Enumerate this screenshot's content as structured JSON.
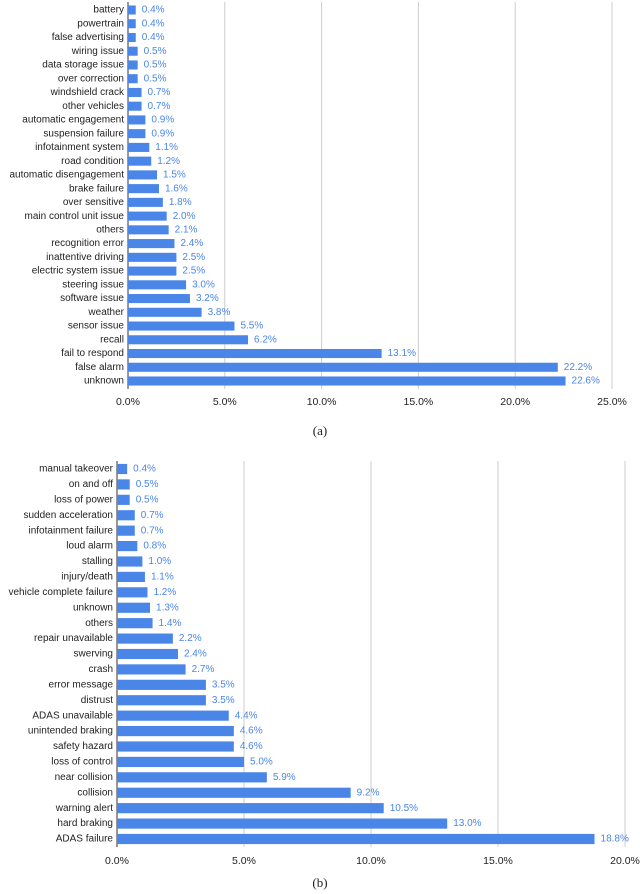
{
  "chart_data": [
    {
      "type": "bar",
      "orientation": "horizontal",
      "caption": "(a)",
      "color": "#4a86e8",
      "grid": true,
      "categories": [
        "battery",
        "powertrain",
        "false advertising",
        "wiring issue",
        "data storage issue",
        "over correction",
        "windshield crack",
        "other vehicles",
        "automatic engagement",
        "suspension failure",
        "infotainment system",
        "road condition",
        "automatic disengagement",
        "brake failure",
        "over sensitive",
        "main control unit issue",
        "others",
        "recognition error",
        "inattentive driving",
        "electric system issue",
        "steering issue",
        "software issue",
        "weather",
        "sensor issue",
        "recall",
        "fail to respond",
        "false alarm",
        "unknown"
      ],
      "values": [
        0.4,
        0.4,
        0.4,
        0.5,
        0.5,
        0.5,
        0.7,
        0.7,
        0.9,
        0.9,
        1.1,
        1.2,
        1.5,
        1.6,
        1.8,
        2.0,
        2.1,
        2.4,
        2.5,
        2.5,
        3.0,
        3.2,
        3.8,
        5.5,
        6.2,
        13.1,
        22.2,
        22.6
      ],
      "value_labels": [
        "0.4%",
        "0.4%",
        "0.4%",
        "0.5%",
        "0.5%",
        "0.5%",
        "0.7%",
        "0.7%",
        "0.9%",
        "0.9%",
        "1.1%",
        "1.2%",
        "1.5%",
        "1.6%",
        "1.8%",
        "2.0%",
        "2.1%",
        "2.4%",
        "2.5%",
        "2.5%",
        "3.0%",
        "3.2%",
        "3.8%",
        "5.5%",
        "6.2%",
        "13.1%",
        "22.2%",
        "22.6%"
      ],
      "xlim": [
        0,
        25
      ],
      "xticks": [
        {
          "value": 0,
          "label": "0.0%"
        },
        {
          "value": 5,
          "label": "5.0%"
        },
        {
          "value": 10,
          "label": "10.0%"
        },
        {
          "value": 15,
          "label": "15.0%"
        },
        {
          "value": 20,
          "label": "20.0%"
        },
        {
          "value": 25,
          "label": "25.0%"
        }
      ]
    },
    {
      "type": "bar",
      "orientation": "horizontal",
      "caption": "(b)",
      "color": "#4a86e8",
      "grid": true,
      "categories": [
        "manual takeover",
        "on and off",
        "loss of power",
        "sudden acceleration",
        "infotainment failure",
        "loud alarm",
        "stalling",
        "injury/death",
        "vehicle complete failure",
        "unknown",
        "others",
        "repair unavailable",
        "swerving",
        "crash",
        "error message",
        "distrust",
        "ADAS unavailable",
        "unintended braking",
        "safety hazard",
        "loss of control",
        "near collision",
        "collision",
        "warning alert",
        "hard braking",
        "ADAS failure"
      ],
      "values": [
        0.4,
        0.5,
        0.5,
        0.7,
        0.7,
        0.8,
        1.0,
        1.1,
        1.2,
        1.3,
        1.4,
        2.2,
        2.4,
        2.7,
        3.5,
        3.5,
        4.4,
        4.6,
        4.6,
        5.0,
        5.9,
        9.2,
        10.5,
        13.0,
        18.8
      ],
      "value_labels": [
        "0.4%",
        "0.5%",
        "0.5%",
        "0.7%",
        "0.7%",
        "0.8%",
        "1.0%",
        "1.1%",
        "1.2%",
        "1.3%",
        "1.4%",
        "2.2%",
        "2.4%",
        "2.7%",
        "3.5%",
        "3.5%",
        "4.4%",
        "4.6%",
        "4.6%",
        "5.0%",
        "5.9%",
        "9.2%",
        "10.5%",
        "13.0%",
        "18.8%"
      ],
      "xlim": [
        0,
        20
      ],
      "xticks": [
        {
          "value": 0,
          "label": "0.0%"
        },
        {
          "value": 5,
          "label": "5.0%"
        },
        {
          "value": 10,
          "label": "10.0%"
        },
        {
          "value": 15,
          "label": "15.0%"
        },
        {
          "value": 20,
          "label": "20.0%"
        }
      ]
    }
  ]
}
